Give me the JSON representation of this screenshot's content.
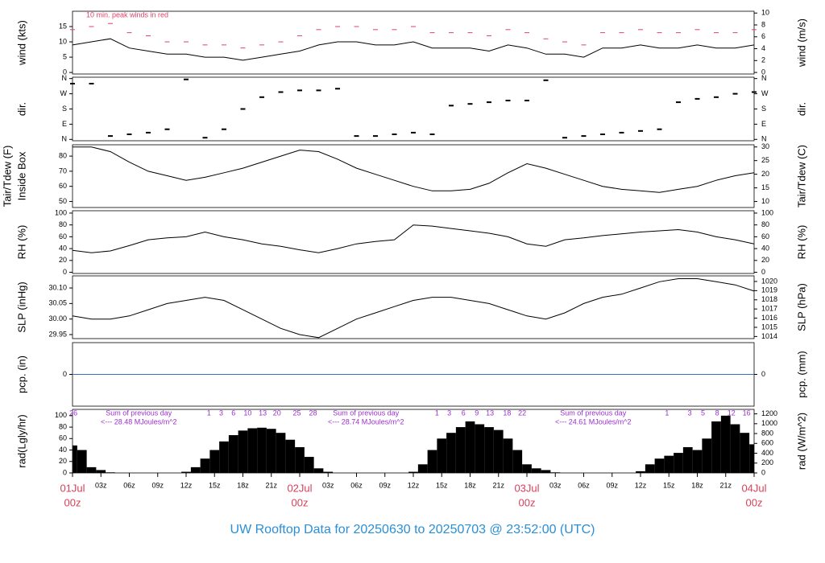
{
  "title": "UW Rooftop Data for 20250630  to  20250703 @ 23:52:00  (UTC)",
  "chart_data": [
    {
      "type": "line",
      "ylabel": "wind (kts)",
      "y2label": "wind (m/s)",
      "annotation": "10 min. peak winds in red",
      "x": [
        0,
        2,
        4,
        6,
        8,
        10,
        12,
        14,
        16,
        18,
        20,
        22,
        24,
        26,
        28,
        30,
        32,
        34,
        36,
        38,
        40,
        42,
        44,
        46,
        48,
        50,
        52,
        54,
        56,
        58,
        60,
        62,
        64,
        66,
        68,
        70,
        72
      ],
      "series": [
        {
          "kind": "dash",
          "color": "#e0406a",
          "values": [
            14,
            15,
            16,
            13,
            12,
            10,
            10,
            9,
            9,
            8,
            9,
            10,
            12,
            14,
            15,
            15,
            14,
            14,
            15,
            13,
            13,
            13,
            12,
            14,
            13,
            11,
            10,
            9,
            13,
            13,
            14,
            13,
            13,
            14,
            13,
            13,
            14
          ]
        },
        {
          "kind": "line",
          "color": "#000000",
          "values": [
            9,
            10,
            11,
            8,
            7,
            6,
            6,
            5,
            5,
            4,
            5,
            6,
            7,
            9,
            10,
            10,
            9,
            9,
            10,
            8,
            8,
            8,
            7,
            9,
            8,
            6,
            6,
            5,
            8,
            8,
            9,
            8,
            8,
            9,
            8,
            8,
            9
          ]
        }
      ],
      "ylim": [
        -0.5,
        20
      ],
      "yticks": [
        0,
        5,
        10,
        15
      ],
      "y2lim": [
        -0.26,
        10.3
      ],
      "y2ticks": [
        0,
        2,
        4,
        6,
        8,
        10
      ]
    },
    {
      "type": "scatter",
      "ylabel": "dir.",
      "y2label": "dir.",
      "x": [
        0,
        2,
        4,
        6,
        8,
        10,
        12,
        14,
        16,
        18,
        20,
        22,
        24,
        26,
        28,
        30,
        32,
        34,
        36,
        38,
        40,
        42,
        44,
        46,
        48,
        50,
        52,
        54,
        56,
        58,
        60,
        62,
        64,
        66,
        68,
        70,
        72
      ],
      "series": [
        {
          "color": "#000000",
          "values": [
            330,
            330,
            20,
            30,
            40,
            60,
            355,
            10,
            60,
            180,
            250,
            280,
            290,
            290,
            300,
            20,
            20,
            30,
            40,
            30,
            200,
            210,
            220,
            230,
            230,
            350,
            10,
            20,
            30,
            40,
            50,
            60,
            220,
            240,
            250,
            270,
            280
          ]
        }
      ],
      "ylim": [
        -8,
        368
      ],
      "yticks": [
        {
          "value": 0,
          "label": "N"
        },
        {
          "value": 90,
          "label": "E"
        },
        {
          "value": 180,
          "label": "S"
        },
        {
          "value": 270,
          "label": "W"
        },
        {
          "value": 360,
          "label": "N"
        }
      ],
      "y2lim": [
        -8,
        368
      ],
      "y2ticks": [
        {
          "value": 0,
          "label": "N"
        },
        {
          "value": 90,
          "label": "E"
        },
        {
          "value": 180,
          "label": "S"
        },
        {
          "value": 270,
          "label": "W"
        },
        {
          "value": 360,
          "label": "N"
        }
      ]
    },
    {
      "type": "line",
      "ylabel": "Tair/Tdew (F)",
      "ylabel_note": "Inside Box",
      "y2label": "Tair/Tdew (C)",
      "x": [
        0,
        2,
        4,
        6,
        8,
        10,
        12,
        14,
        16,
        18,
        20,
        22,
        24,
        26,
        28,
        30,
        32,
        34,
        36,
        38,
        40,
        42,
        44,
        46,
        48,
        50,
        52,
        54,
        56,
        58,
        60,
        62,
        64,
        66,
        68,
        70,
        72
      ],
      "series": [
        {
          "kind": "line",
          "color": "#000000",
          "values": [
            86,
            86,
            83,
            76,
            70,
            67,
            64,
            66,
            69,
            72,
            76,
            80,
            84,
            83,
            78,
            72,
            68,
            64,
            60,
            57,
            57,
            58,
            62,
            69,
            75,
            72,
            68,
            64,
            60,
            58,
            57,
            56,
            58,
            60,
            64,
            67,
            69
          ]
        }
      ],
      "ylim": [
        46,
        87.5
      ],
      "yticks": [
        50,
        60,
        70,
        80
      ],
      "y2lim": [
        7.8,
        30.8
      ],
      "y2ticks": [
        10,
        15,
        20,
        25,
        30
      ]
    },
    {
      "type": "line",
      "ylabel": "RH (%)",
      "y2label": "RH (%)",
      "x": [
        0,
        2,
        4,
        6,
        8,
        10,
        12,
        14,
        16,
        18,
        20,
        22,
        24,
        26,
        28,
        30,
        32,
        34,
        36,
        38,
        40,
        42,
        44,
        46,
        48,
        50,
        52,
        54,
        56,
        58,
        60,
        62,
        64,
        66,
        68,
        70,
        72
      ],
      "series": [
        {
          "kind": "line",
          "color": "#000000",
          "values": [
            37,
            33,
            36,
            45,
            55,
            58,
            60,
            68,
            60,
            55,
            48,
            44,
            38,
            33,
            40,
            48,
            52,
            55,
            80,
            78,
            74,
            70,
            66,
            60,
            48,
            44,
            55,
            58,
            62,
            65,
            68,
            70,
            72,
            68,
            60,
            55,
            48
          ]
        }
      ],
      "ylim": [
        -2,
        104
      ],
      "yticks": [
        0,
        20,
        40,
        60,
        80,
        100
      ],
      "y2lim": [
        -2,
        104
      ],
      "y2ticks": [
        0,
        20,
        40,
        60,
        80,
        100
      ]
    },
    {
      "type": "line",
      "ylabel": "SLP (inHg)",
      "y2label": "SLP (hPa)",
      "x": [
        0,
        2,
        4,
        6,
        8,
        10,
        12,
        14,
        16,
        18,
        20,
        22,
        24,
        26,
        28,
        30,
        32,
        34,
        36,
        38,
        40,
        42,
        44,
        46,
        48,
        50,
        52,
        54,
        56,
        58,
        60,
        62,
        64,
        66,
        68,
        70,
        72
      ],
      "series": [
        {
          "kind": "line",
          "color": "#000000",
          "values": [
            30.01,
            30.0,
            30.0,
            30.01,
            30.03,
            30.05,
            30.06,
            30.07,
            30.06,
            30.03,
            30.0,
            29.97,
            29.95,
            29.94,
            29.97,
            30.0,
            30.02,
            30.04,
            30.06,
            30.07,
            30.07,
            30.06,
            30.05,
            30.03,
            30.01,
            30.0,
            30.02,
            30.05,
            30.07,
            30.08,
            30.1,
            30.12,
            30.13,
            30.13,
            30.12,
            30.11,
            30.09
          ]
        }
      ],
      "ylim": [
        29.937,
        30.139
      ],
      "yticks": [
        {
          "value": 29.95,
          "label": "29.95"
        },
        {
          "value": 30.0,
          "label": "30.00"
        },
        {
          "value": 30.05,
          "label": "30.05"
        },
        {
          "value": 30.1,
          "label": "30.10"
        }
      ],
      "y2lim": [
        1013.77,
        1020.61
      ],
      "y2ticks": [
        1014,
        1015,
        1016,
        1017,
        1018,
        1019,
        1020
      ]
    },
    {
      "type": "line",
      "ylabel": "pcp. (in)",
      "y2label": "pcp. (mm)",
      "x": [
        0,
        72
      ],
      "series": [
        {
          "kind": "line",
          "color": "#3a6fc0",
          "values": [
            0,
            0
          ]
        }
      ],
      "ylim": [
        -1,
        1
      ],
      "yticks": [
        0
      ],
      "y2lim": [
        -1,
        1
      ],
      "y2ticks": [
        0
      ]
    },
    {
      "type": "bar",
      "ylabel": "rad(Lgly/hr)",
      "y2label": "rad (W/m^2)",
      "x": [
        0,
        1,
        2,
        3,
        4,
        5,
        6,
        7,
        8,
        9,
        10,
        11,
        12,
        13,
        14,
        15,
        16,
        17,
        18,
        19,
        20,
        21,
        22,
        23,
        24,
        25,
        26,
        27,
        28,
        29,
        30,
        31,
        32,
        33,
        34,
        35,
        36,
        37,
        38,
        39,
        40,
        41,
        42,
        43,
        44,
        45,
        46,
        47,
        48,
        49,
        50,
        51,
        52,
        53,
        54,
        55,
        56,
        57,
        58,
        59,
        60,
        61,
        62,
        63,
        64,
        65,
        66,
        67,
        68,
        69,
        70,
        71,
        72
      ],
      "series": [
        {
          "color": "#000000",
          "values": [
            48,
            40,
            10,
            5,
            1,
            0,
            0,
            0,
            0,
            0,
            0,
            0,
            2,
            10,
            25,
            40,
            55,
            66,
            74,
            78,
            79,
            77,
            70,
            58,
            45,
            28,
            8,
            2,
            0,
            0,
            0,
            0,
            0,
            0,
            0,
            0,
            2,
            15,
            40,
            60,
            70,
            80,
            90,
            85,
            80,
            75,
            60,
            40,
            15,
            8,
            5,
            1,
            0,
            0,
            0,
            0,
            0,
            0,
            0,
            0,
            3,
            15,
            25,
            30,
            35,
            45,
            40,
            60,
            90,
            100,
            85,
            70,
            50
          ]
        }
      ],
      "ylim": [
        0,
        111
      ],
      "yticks": [
        0,
        20,
        40,
        60,
        80,
        100
      ],
      "y2lim": [
        0,
        1291
      ],
      "y2ticks": [
        0,
        200,
        400,
        600,
        800,
        1000,
        1200
      ],
      "hour_labels": [
        {
          "x": 0.1,
          "text": "26"
        },
        {
          "x": 14.4,
          "text": "1"
        },
        {
          "x": 15.7,
          "text": "3"
        },
        {
          "x": 17,
          "text": "6"
        },
        {
          "x": 18.5,
          "text": "10"
        },
        {
          "x": 20.1,
          "text": "13"
        },
        {
          "x": 21.6,
          "text": "20"
        },
        {
          "x": 23.7,
          "text": "25"
        },
        {
          "x": 25.4,
          "text": "28"
        },
        {
          "x": 38.5,
          "text": "1"
        },
        {
          "x": 39.8,
          "text": "3"
        },
        {
          "x": 41.3,
          "text": "6"
        },
        {
          "x": 42.7,
          "text": "9"
        },
        {
          "x": 44.1,
          "text": "13"
        },
        {
          "x": 45.9,
          "text": "18"
        },
        {
          "x": 47.5,
          "text": "22"
        },
        {
          "x": 62.8,
          "text": "1"
        },
        {
          "x": 65.2,
          "text": "3"
        },
        {
          "x": 66.6,
          "text": "5"
        },
        {
          "x": 68.1,
          "text": "8"
        },
        {
          "x": 69.6,
          "text": "12"
        },
        {
          "x": 71.2,
          "text": "16"
        }
      ],
      "day_sums": [
        {
          "x": 7,
          "title": "Sum of previous day",
          "text": "<--- 28.48 MJoules/m^2"
        },
        {
          "x": 31,
          "title": "Sum of previous day",
          "text": "<--- 28.74 MJoules/m^2"
        },
        {
          "x": 55,
          "title": "Sum of previous day",
          "text": "<--- 24.61 MJoules/m^2"
        }
      ],
      "xlim": [
        0,
        72
      ],
      "xticks": [
        {
          "value": 0,
          "label": "00z"
        },
        {
          "value": 3,
          "label": "03z"
        },
        {
          "value": 6,
          "label": "06z"
        },
        {
          "value": 9,
          "label": "09z"
        },
        {
          "value": 12,
          "label": "12z"
        },
        {
          "value": 15,
          "label": "15z"
        },
        {
          "value": 18,
          "label": "18z"
        },
        {
          "value": 21,
          "label": "21z"
        },
        {
          "value": 24,
          "label": "00z"
        },
        {
          "value": 27,
          "label": "03z"
        },
        {
          "value": 30,
          "label": "06z"
        },
        {
          "value": 33,
          "label": "09z"
        },
        {
          "value": 36,
          "label": "12z"
        },
        {
          "value": 39,
          "label": "15z"
        },
        {
          "value": 42,
          "label": "18z"
        },
        {
          "value": 45,
          "label": "21z"
        },
        {
          "value": 48,
          "label": "00z"
        },
        {
          "value": 51,
          "label": "03z"
        },
        {
          "value": 54,
          "label": "06z"
        },
        {
          "value": 57,
          "label": "09z"
        },
        {
          "value": 60,
          "label": "12z"
        },
        {
          "value": 63,
          "label": "15z"
        },
        {
          "value": 66,
          "label": "18z"
        },
        {
          "value": 69,
          "label": "21z"
        },
        {
          "value": 72,
          "label": "00z"
        }
      ],
      "day_labels": [
        {
          "value": 0,
          "label": "01Jul"
        },
        {
          "value": 24,
          "label": "02Jul"
        },
        {
          "value": 48,
          "label": "03Jul"
        },
        {
          "value": 72,
          "label": "04Jul"
        }
      ]
    }
  ]
}
